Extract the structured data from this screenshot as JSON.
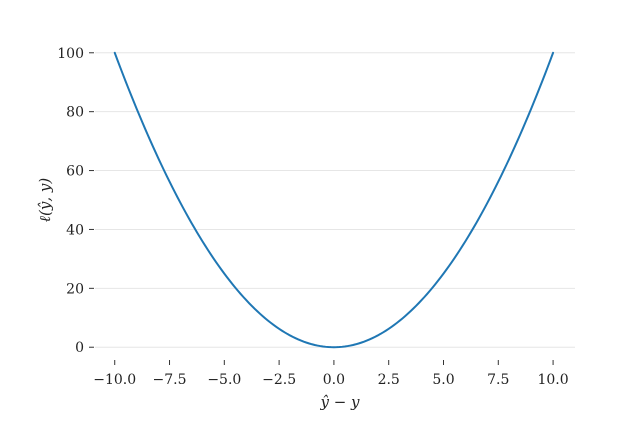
{
  "chart_data": {
    "type": "line",
    "title": "",
    "xlabel": "ŷ − y",
    "ylabel": "ℓ(ŷ, y)",
    "xlim": [
      -10.9,
      11.0
    ],
    "ylim": [
      -4,
      104
    ],
    "grid": {
      "x": false,
      "y": true
    },
    "x_ticks": [
      -10.0,
      -7.5,
      -5.0,
      -2.5,
      0.0,
      2.5,
      5.0,
      7.5,
      10.0
    ],
    "x_tick_labels": [
      "−10.0",
      "−7.5",
      "−5.0",
      "−2.5",
      "0.0",
      "2.5",
      "5.0",
      "7.5",
      "10.0"
    ],
    "y_ticks": [
      0,
      20,
      40,
      60,
      80,
      100
    ],
    "y_tick_labels": [
      "0",
      "20",
      "40",
      "60",
      "80",
      "100"
    ],
    "series": [
      {
        "color": "#1f77b4",
        "x": [
          -10,
          -9,
          -8,
          -7,
          -6,
          -5,
          -4,
          -3,
          -2,
          -1,
          0,
          1,
          2,
          3,
          4,
          5,
          6,
          7,
          8,
          9,
          10
        ],
        "y": [
          100,
          81,
          64,
          49,
          36,
          25,
          16,
          9,
          4,
          1,
          0,
          1,
          4,
          9,
          16,
          25,
          36,
          49,
          64,
          81,
          100
        ]
      }
    ]
  }
}
